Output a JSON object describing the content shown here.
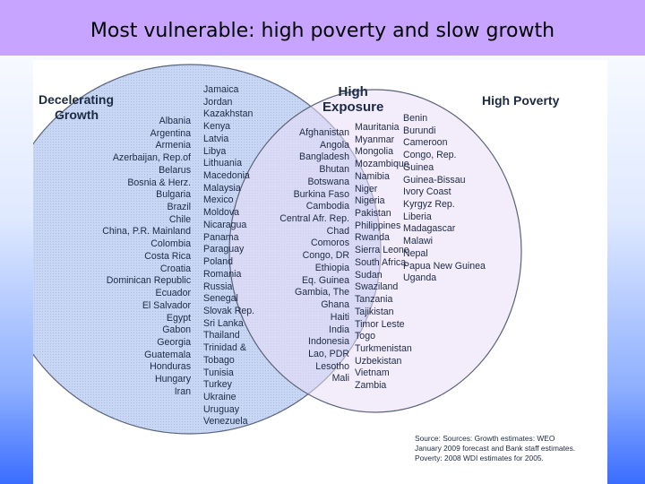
{
  "title": "Most vulnerable: high poverty and slow growth",
  "headings": {
    "decelerating_growth": [
      "Decelerating",
      "Growth"
    ],
    "high_exposure": [
      "High",
      "Exposure"
    ],
    "high_poverty": [
      "High Poverty"
    ]
  },
  "regions": {
    "growth_only_a": [
      "Albania",
      "Argentina",
      "Armenia",
      "Azerbaijan, Rep.of",
      "Belarus",
      "Bosnia & Herz.",
      "Bulgaria",
      "Brazil",
      "Chile",
      "China, P.R. Mainland",
      "Colombia",
      "Costa Rica",
      "Croatia",
      "Dominican Republic",
      "Ecuador",
      "El Salvador",
      "Egypt",
      "Gabon",
      "Georgia",
      "Guatemala",
      "Honduras",
      "Hungary",
      "Iran"
    ],
    "growth_only_b": [
      "Jamaica",
      "Jordan",
      "Kazakhstan",
      "Kenya",
      "Latvia",
      "Libya",
      "Lithuania",
      "Macedonia",
      "Malaysia",
      "Mexico",
      "Moldova",
      "Nicaragua",
      "Panama",
      "Paraguay",
      "Poland",
      "Romania",
      "Russia",
      "Senegal",
      "Slovak Rep.",
      "Sri Lanka",
      "Thailand",
      "Trinidad &",
      "Tobago",
      "Tunisia",
      "Turkey",
      "Ukraine",
      "Uruguay",
      "Venezuela"
    ],
    "overlap_a": [
      "Afghanistan",
      "Angola",
      "Bangladesh",
      "Bhutan",
      "Botswana",
      "Burkina Faso",
      "Cambodia",
      "Central Afr. Rep.",
      "Chad",
      "Comoros",
      "Congo, DR",
      "Ethiopia",
      "Eq. Guinea",
      "Gambia, The",
      "Ghana",
      "Haiti",
      "India",
      "Indonesia",
      "Lao, PDR",
      "Lesotho",
      "Mali"
    ],
    "overlap_b": [
      "Mauritania",
      "Myanmar",
      "Mongolia",
      "Mozambique",
      "Namibia",
      "Niger",
      "Nigeria",
      "Pakistan",
      "Philippines",
      "Rwanda",
      "Sierra Leone",
      "South Africa",
      "Sudan",
      "Swaziland",
      "Tanzania",
      "Tajikistan",
      "Timor Leste",
      "Togo",
      "Turkmenistan",
      "Uzbekistan",
      "Vietnam",
      "Zambia"
    ],
    "poverty_only": [
      "Benin",
      "Burundi",
      "Cameroon",
      "Congo, Rep.",
      "Guinea",
      "Guinea-Bissau",
      "Ivory Coast",
      "Kyrgyz Rep.",
      "Liberia",
      "Madagascar",
      "Malawi",
      "Nepal",
      "Papua New Guinea",
      "Uganda"
    ]
  },
  "source": [
    "Source: Sources: Growth estimates: WEO",
    "January 2009 forecast and  Bank staff estimates.",
    "Poverty: 2008 WDI estimates for 2005."
  ],
  "colors": {
    "title_bar": "#c7a4ff",
    "growth_circle_fill": "#c9d7f7",
    "poverty_circle_fill": "#e7dcf7",
    "circle_stroke": "#5a6478"
  }
}
